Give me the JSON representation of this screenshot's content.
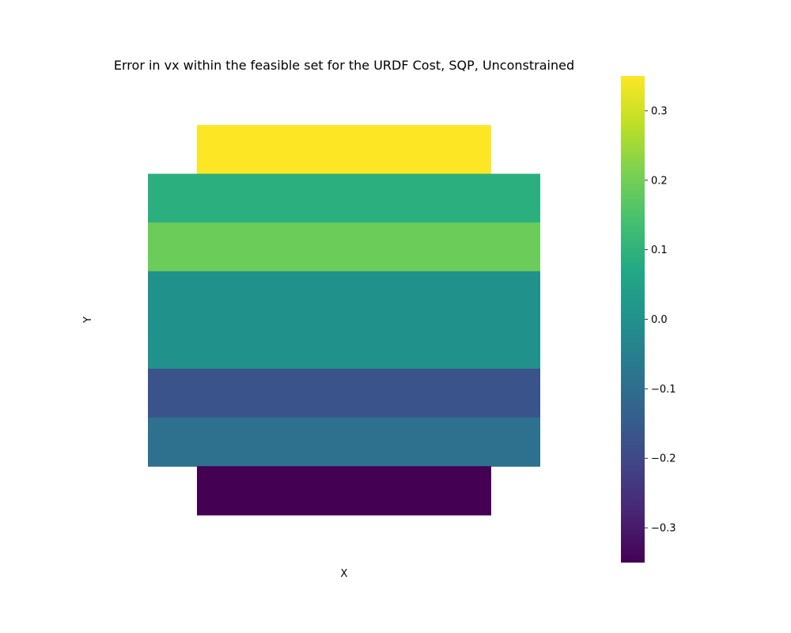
{
  "chart_data": {
    "type": "heatmap",
    "title": "Error in vx within the feasible set for the URDF Cost, SQP, Unconstrained",
    "xlabel": "X",
    "ylabel": "Y",
    "colormap": "viridis",
    "grid": false,
    "legend_position": "right",
    "rows": [
      {
        "value": 0.35,
        "x_extent": "narrow"
      },
      {
        "value": 0.09,
        "x_extent": "wide"
      },
      {
        "value": 0.19,
        "x_extent": "wide"
      },
      {
        "value": 0.0,
        "x_extent": "wide"
      },
      {
        "value": 0.0,
        "x_extent": "wide"
      },
      {
        "value": -0.17,
        "x_extent": "wide"
      },
      {
        "value": -0.09,
        "x_extent": "wide"
      },
      {
        "value": -0.35,
        "x_extent": "narrow"
      }
    ],
    "colorbar": {
      "min": -0.35,
      "max": 0.35,
      "ticks": [
        -0.3,
        -0.2,
        -0.1,
        0.0,
        0.1,
        0.2,
        0.3
      ],
      "tick_labels": [
        "−0.3",
        "−0.2",
        "−0.1",
        "0.0",
        "0.1",
        "0.2",
        "0.3"
      ]
    }
  }
}
